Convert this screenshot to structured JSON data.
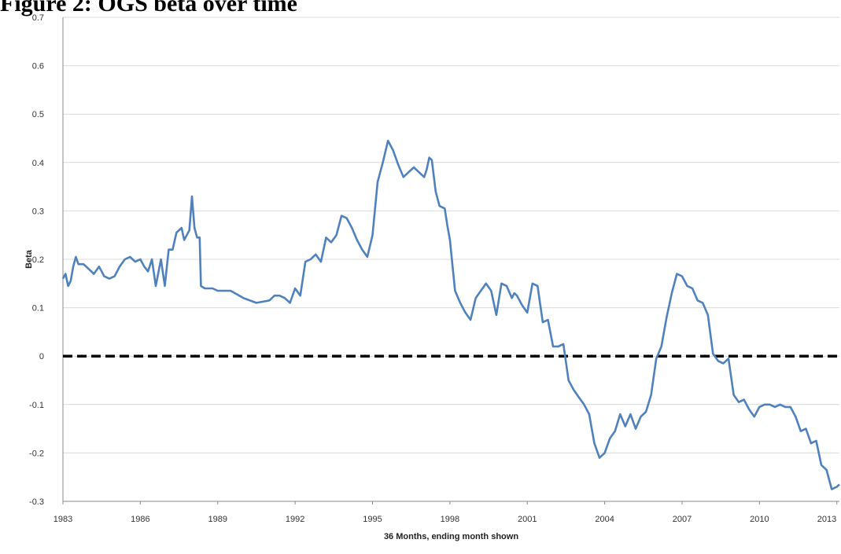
{
  "figure_title": "Figure 2: OGS beta over time",
  "chart_data": {
    "type": "line",
    "title": "Figure 2: OGS beta over time",
    "xlabel": "36 Months, ending month shown",
    "ylabel": "Beta",
    "xlim": [
      1983,
      2013.1
    ],
    "ylim": [
      -0.3,
      0.7
    ],
    "yticks": [
      -0.3,
      -0.2,
      -0.1,
      0,
      0.1,
      0.2,
      0.3,
      0.4,
      0.5,
      0.6,
      0.7
    ],
    "ytick_labels": [
      "-0.3",
      "-0.2",
      "-0.1",
      "0",
      "0.1",
      "0.2",
      "0.3",
      "0.4",
      "0.5",
      "0.6",
      "0.7"
    ],
    "xticks": [
      1983,
      1986,
      1989,
      1992,
      1995,
      1998,
      2001,
      2004,
      2007,
      2010,
      2013
    ],
    "xtick_labels": [
      "1983",
      "1986",
      "1989",
      "1992",
      "1995",
      "1998",
      "2001",
      "2004",
      "2007",
      "2010",
      "2013"
    ],
    "grid": "horizontal",
    "line_color": "#4f81bd",
    "reference_line": {
      "y": 0,
      "style": "dashed",
      "color": "#000000"
    },
    "series": [
      {
        "x": [
          1983.0,
          1983.1,
          1983.2,
          1983.3,
          1983.4,
          1983.5,
          1983.6,
          1983.8,
          1984.0,
          1984.2,
          1984.4,
          1984.6,
          1984.8,
          1985.0,
          1985.2,
          1985.4,
          1985.6,
          1985.8,
          1986.0,
          1986.15,
          1986.3,
          1986.45,
          1986.6,
          1986.8,
          1986.95,
          1987.1,
          1987.25,
          1987.4,
          1987.6,
          1987.7,
          1987.8,
          1987.9,
          1988.0,
          1988.1,
          1988.2,
          1988.3,
          1988.35,
          1988.5,
          1988.8,
          1989.0,
          1989.5,
          1990.0,
          1990.5,
          1991.0,
          1991.2,
          1991.4,
          1991.6,
          1991.8,
          1992.0,
          1992.2,
          1992.4,
          1992.6,
          1992.8,
          1993.0,
          1993.2,
          1993.4,
          1993.6,
          1993.8,
          1994.0,
          1994.2,
          1994.4,
          1994.6,
          1994.8,
          1995.0,
          1995.2,
          1995.4,
          1995.6,
          1995.8,
          1996.0,
          1996.2,
          1996.4,
          1996.6,
          1996.8,
          1997.0,
          1997.1,
          1997.2,
          1997.3,
          1997.45,
          1997.6,
          1997.8,
          1997.9,
          1998.0,
          1998.2,
          1998.4,
          1998.6,
          1998.8,
          1999.0,
          1999.2,
          1999.4,
          1999.6,
          1999.8,
          2000.0,
          2000.2,
          2000.4,
          2000.5,
          2000.6,
          2000.8,
          2001.0,
          2001.2,
          2001.4,
          2001.6,
          2001.8,
          2002.0,
          2002.2,
          2002.4,
          2002.6,
          2002.8,
          2003.0,
          2003.2,
          2003.4,
          2003.6,
          2003.8,
          2004.0,
          2004.2,
          2004.4,
          2004.6,
          2004.8,
          2005.0,
          2005.2,
          2005.4,
          2005.6,
          2005.8,
          2006.0,
          2006.2,
          2006.4,
          2006.6,
          2006.8,
          2007.0,
          2007.2,
          2007.4,
          2007.6,
          2007.8,
          2008.0,
          2008.2,
          2008.4,
          2008.6,
          2008.8,
          2009.0,
          2009.2,
          2009.4,
          2009.6,
          2009.8,
          2010.0,
          2010.2,
          2010.4,
          2010.6,
          2010.8,
          2011.0,
          2011.2,
          2011.4,
          2011.6,
          2011.8,
          2012.0,
          2012.2,
          2012.4,
          2012.6,
          2012.8,
          2013.0,
          2013.1
        ],
        "values": [
          0.16,
          0.17,
          0.145,
          0.155,
          0.185,
          0.205,
          0.19,
          0.19,
          0.18,
          0.17,
          0.185,
          0.165,
          0.16,
          0.165,
          0.185,
          0.2,
          0.205,
          0.195,
          0.2,
          0.185,
          0.175,
          0.2,
          0.145,
          0.2,
          0.145,
          0.22,
          0.22,
          0.255,
          0.265,
          0.24,
          0.25,
          0.26,
          0.33,
          0.265,
          0.245,
          0.245,
          0.145,
          0.14,
          0.14,
          0.135,
          0.135,
          0.12,
          0.11,
          0.115,
          0.125,
          0.125,
          0.12,
          0.11,
          0.14,
          0.125,
          0.195,
          0.2,
          0.21,
          0.195,
          0.245,
          0.235,
          0.25,
          0.29,
          0.285,
          0.265,
          0.24,
          0.22,
          0.205,
          0.25,
          0.36,
          0.4,
          0.445,
          0.425,
          0.395,
          0.37,
          0.38,
          0.39,
          0.38,
          0.37,
          0.385,
          0.41,
          0.405,
          0.34,
          0.31,
          0.305,
          0.27,
          0.24,
          0.135,
          0.11,
          0.09,
          0.075,
          0.12,
          0.135,
          0.15,
          0.135,
          0.085,
          0.15,
          0.145,
          0.12,
          0.13,
          0.125,
          0.105,
          0.09,
          0.15,
          0.145,
          0.07,
          0.075,
          0.02,
          0.02,
          0.025,
          -0.05,
          -0.07,
          -0.085,
          -0.1,
          -0.12,
          -0.18,
          -0.21,
          -0.2,
          -0.17,
          -0.155,
          -0.12,
          -0.145,
          -0.12,
          -0.15,
          -0.125,
          -0.115,
          -0.08,
          -0.005,
          0.02,
          0.08,
          0.13,
          0.17,
          0.165,
          0.145,
          0.14,
          0.115,
          0.11,
          0.085,
          0.005,
          -0.01,
          -0.015,
          -0.005,
          -0.08,
          -0.095,
          -0.09,
          -0.11,
          -0.125,
          -0.105,
          -0.1,
          -0.1,
          -0.105,
          -0.1,
          -0.105,
          -0.105,
          -0.125,
          -0.155,
          -0.15,
          -0.18,
          -0.175,
          -0.225,
          -0.235,
          -0.275,
          -0.27,
          -0.265
        ]
      }
    ]
  }
}
